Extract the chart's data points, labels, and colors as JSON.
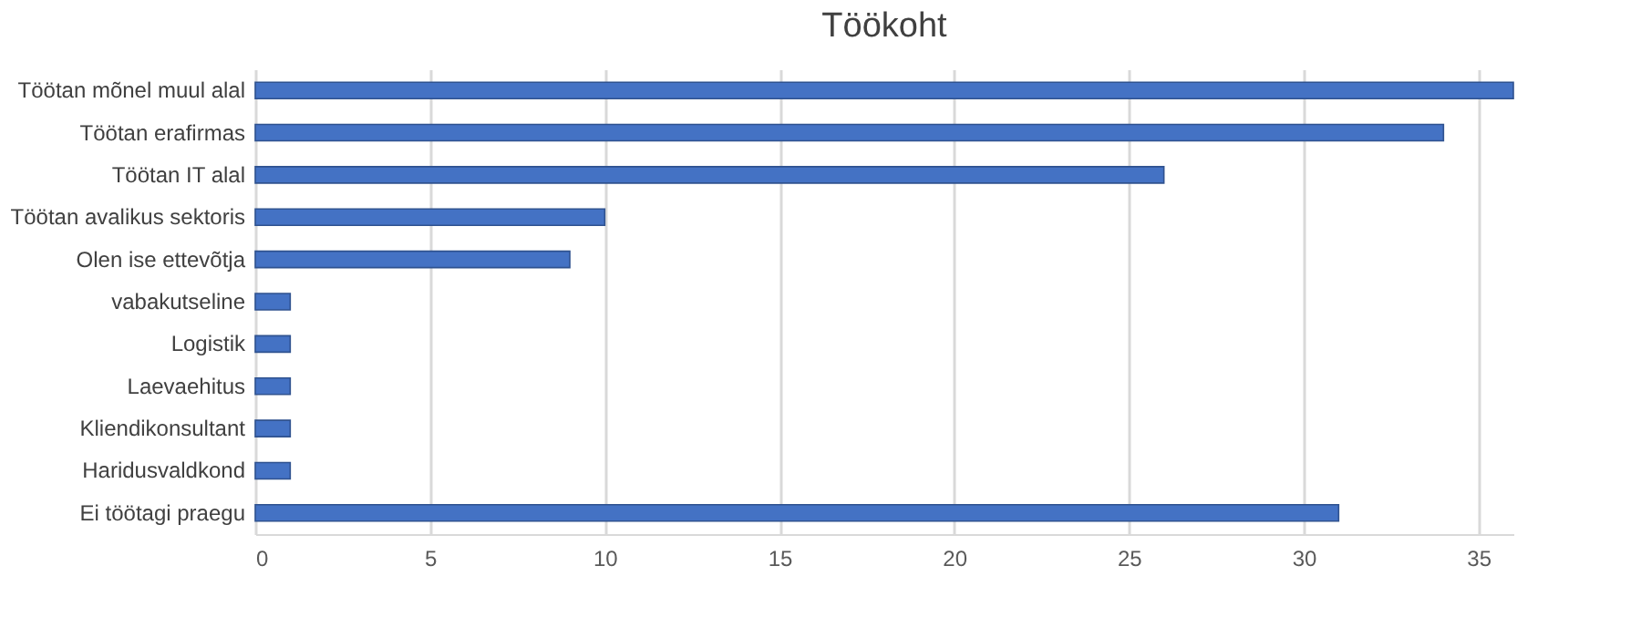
{
  "chart_data": {
    "type": "bar",
    "orientation": "horizontal",
    "title": "Töökoht",
    "categories": [
      "Töötan mõnel muul alal",
      "Töötan erafirmas",
      "Töötan IT alal",
      "Töötan avalikus sektoris",
      "Olen ise ettevõtja",
      "vabakutseline",
      "Logistik",
      "Laevaehitus",
      "Kliendikonsultant",
      "Haridusvaldkond",
      "Ei töötagi praegu"
    ],
    "values": [
      36,
      34,
      26,
      10,
      9,
      1,
      1,
      1,
      1,
      1,
      31
    ],
    "color": "#4472c4",
    "xlim": [
      0,
      36
    ],
    "xticks": [
      0,
      5,
      10,
      15,
      20,
      25,
      30,
      35
    ],
    "grid": "x"
  }
}
